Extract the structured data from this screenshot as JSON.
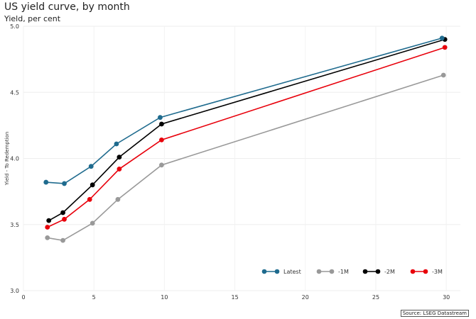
{
  "chart_data": {
    "type": "line",
    "title": "US yield curve, by month",
    "subtitle": "Yield, per cent",
    "ylabel": "Yield - To Redemption",
    "xlabel": "",
    "xlim": [
      0,
      31
    ],
    "ylim": [
      3.0,
      5.0
    ],
    "x_ticks": [
      0,
      5,
      10,
      15,
      20,
      25,
      30
    ],
    "y_ticks": [
      3.0,
      3.5,
      4.0,
      4.5,
      5.0
    ],
    "grid": true,
    "legend_position": "bottom-right",
    "series": [
      {
        "name": "Latest",
        "color": "#1f6b8e",
        "x": [
          1.6,
          2.9,
          4.8,
          6.6,
          9.7,
          29.7
        ],
        "y": [
          3.82,
          3.81,
          3.94,
          4.11,
          4.31,
          4.91
        ]
      },
      {
        "name": "-1M",
        "color": "#999999",
        "x": [
          1.7,
          2.8,
          4.9,
          6.7,
          9.8,
          29.8
        ],
        "y": [
          3.4,
          3.38,
          3.51,
          3.69,
          3.95,
          4.63
        ]
      },
      {
        "name": "-2M",
        "color": "#000000",
        "x": [
          1.8,
          2.8,
          4.9,
          6.8,
          9.8,
          29.9
        ],
        "y": [
          3.53,
          3.59,
          3.8,
          4.01,
          4.26,
          4.9
        ]
      },
      {
        "name": "-3M",
        "color": "#e8000b",
        "x": [
          1.7,
          2.9,
          4.7,
          6.8,
          9.8,
          29.9
        ],
        "y": [
          3.48,
          3.54,
          3.69,
          3.92,
          4.14,
          4.84
        ]
      }
    ]
  },
  "source": "Source: LSEG Datastream"
}
